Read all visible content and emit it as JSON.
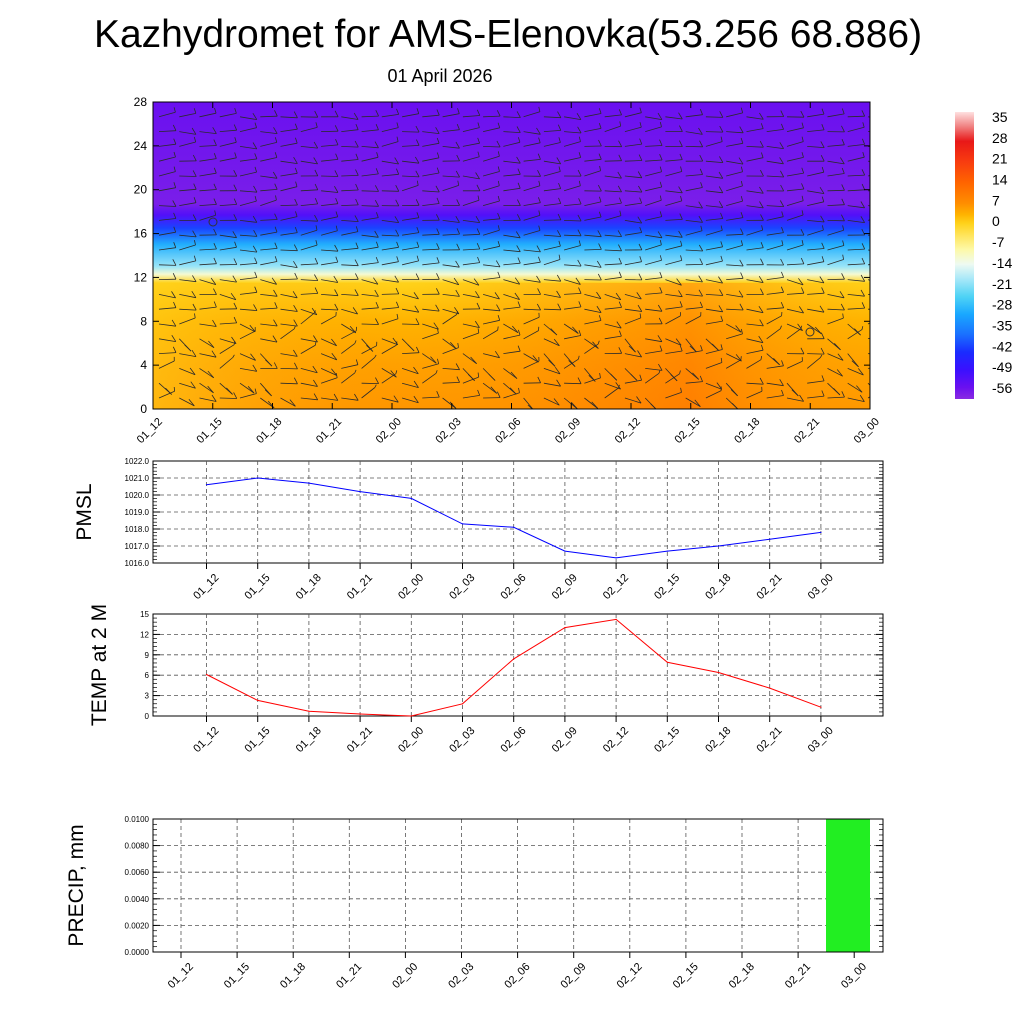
{
  "title": "Kazhydromet for AMS-Elenovka(53.256 68.886)",
  "subtitle": "01 April 2026",
  "time_labels": [
    "01_12",
    "01_15",
    "01_18",
    "01_21",
    "02_00",
    "02_03",
    "02_06",
    "02_09",
    "02_12",
    "02_15",
    "02_18",
    "02_21",
    "03_00"
  ],
  "colors": {
    "pmsl_line": "#0000ff",
    "temp_line": "#ff0000",
    "precip_bar": "#22ee22",
    "grid": "#555555"
  },
  "chart_data": [
    {
      "type": "heatmap",
      "name": "vertical-cross-section",
      "x": [
        "01_12",
        "01_15",
        "01_18",
        "01_21",
        "02_00",
        "02_03",
        "02_06",
        "02_09",
        "02_12",
        "02_15",
        "02_18",
        "02_21",
        "03_00"
      ],
      "y_ticks": [
        "0",
        "4",
        "8",
        "12",
        "16",
        "20",
        "24",
        "28"
      ],
      "ylim": [
        0,
        28
      ],
      "temperature_profile": [
        {
          "level": 0,
          "value": 6
        },
        {
          "level": 4,
          "value": 5
        },
        {
          "level": 8,
          "value": 3
        },
        {
          "level": 11.5,
          "value": 0
        },
        {
          "level": 12.3,
          "value": -12
        },
        {
          "level": 13,
          "value": -20
        },
        {
          "level": 15,
          "value": -30
        },
        {
          "level": 16.5,
          "value": -42
        },
        {
          "level": 17.7,
          "value": -53
        },
        {
          "level": 18.7,
          "value": -58
        },
        {
          "level": 28,
          "value": -56
        }
      ],
      "colorbar": {
        "labels": [
          "35",
          "28",
          "21",
          "14",
          "7",
          "0",
          "-7",
          "-14",
          "-21",
          "-28",
          "-35",
          "-42",
          "-49",
          "-56"
        ],
        "range": [
          -60,
          38
        ]
      },
      "wind_barbs": "present"
    },
    {
      "type": "line",
      "name": "pmsl",
      "ylabel": "PMSL",
      "ylim": [
        1016.0,
        1022.0
      ],
      "y_ticks": [
        "1016.0",
        "1017.0",
        "1018.0",
        "1019.0",
        "1020.0",
        "1021.0",
        "1022.0"
      ],
      "x": [
        "01_12",
        "01_15",
        "01_18",
        "01_21",
        "02_00",
        "02_03",
        "02_06",
        "02_09",
        "02_12",
        "02_15",
        "02_18",
        "02_21",
        "03_00"
      ],
      "values": [
        1020.6,
        1021.0,
        1020.7,
        1020.2,
        1019.8,
        1018.3,
        1018.1,
        1016.7,
        1016.3,
        1016.7,
        1017.0,
        1017.4,
        1017.8
      ]
    },
    {
      "type": "line",
      "name": "temp-2m",
      "ylabel": "TEMP at 2 M",
      "ylim": [
        0,
        15
      ],
      "y_ticks": [
        "0",
        "3",
        "6",
        "9",
        "12",
        "15"
      ],
      "x": [
        "01_12",
        "01_15",
        "01_18",
        "01_21",
        "02_00",
        "02_03",
        "02_06",
        "02_09",
        "02_12",
        "02_15",
        "02_18",
        "02_21",
        "03_00"
      ],
      "values": [
        6.1,
        2.3,
        0.7,
        0.3,
        0.0,
        1.8,
        8.4,
        13.0,
        14.2,
        7.9,
        6.4,
        4.1,
        1.3
      ]
    },
    {
      "type": "bar",
      "name": "precip",
      "ylabel": "PRECIP, mm",
      "ylim": [
        0,
        0.01
      ],
      "y_ticks": [
        "0.0000",
        "0.0020",
        "0.0040",
        "0.0060",
        "0.0080",
        "0.0100"
      ],
      "categories": [
        "01_12",
        "01_15",
        "01_18",
        "01_21",
        "02_00",
        "02_03",
        "02_06",
        "02_09",
        "02_12",
        "02_15",
        "02_18",
        "02_21",
        "03_00"
      ],
      "values": [
        0,
        0,
        0,
        0,
        0,
        0,
        0,
        0,
        0,
        0,
        0,
        0,
        0.01
      ]
    }
  ]
}
